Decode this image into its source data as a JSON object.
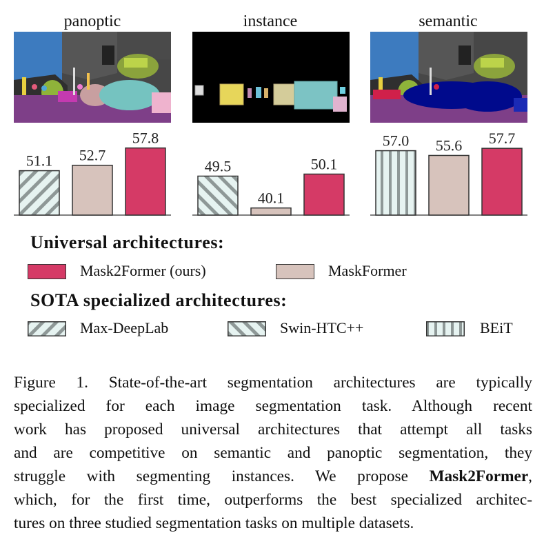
{
  "figure": {
    "panels": [
      {
        "title": "panoptic"
      },
      {
        "title": "instance"
      },
      {
        "title": "semantic"
      }
    ],
    "legend": {
      "universal_heading": "Universal architectures:",
      "specialized_heading": "SOTA specialized architectures:",
      "items": {
        "mask2former": "Mask2Former (ours)",
        "maskformer": "MaskFormer",
        "maxdeeplab": "Max-DeepLab",
        "swinhtc": "Swin-HTC++",
        "beit": "BEiT"
      }
    },
    "colors": {
      "mask2former": "#d53a66",
      "maskformer": "#d7c3bc",
      "specialized": "#e6f3f1",
      "hatch": "#8e9897"
    }
  },
  "chart_data": [
    {
      "type": "bar",
      "categories": [
        "Max-DeepLab",
        "MaskFormer",
        "Mask2Former (ours)"
      ],
      "values": [
        51.1,
        52.7,
        57.8
      ],
      "title": "panoptic",
      "ylim": [
        38,
        62
      ]
    },
    {
      "type": "bar",
      "categories": [
        "Swin-HTC++",
        "MaskFormer",
        "Mask2Former (ours)"
      ],
      "values": [
        49.5,
        40.1,
        50.1
      ],
      "title": "instance",
      "ylim": [
        38,
        62
      ]
    },
    {
      "type": "bar",
      "categories": [
        "BEiT",
        "MaskFormer",
        "Mask2Former (ours)"
      ],
      "values": [
        57.0,
        55.6,
        57.7
      ],
      "title": "semantic",
      "ylim": [
        38,
        62
      ]
    }
  ],
  "caption": {
    "lines": [
      "Figure 1. State-of-the-art segmentation architectures are typically",
      "specialized for each image segmentation task.  Although recent",
      "work has proposed universal architectures that attempt all tasks",
      "and are competitive on semantic and panoptic segmentation, they",
      "struggle with segmenting instances. We propose ",
      "which, for the first time, outperforms the best specialized architec-",
      "tures on three studied segmentation tasks on multiple datasets."
    ],
    "bold": "Mask2Former",
    "bold_suffix": ","
  }
}
